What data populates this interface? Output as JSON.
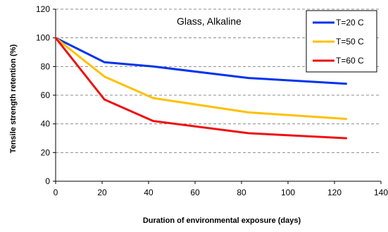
{
  "chart_data": {
    "type": "line",
    "title": "",
    "annotation": "Glass, Alkaline",
    "xlabel": "Duration of environmental exposure (days)",
    "ylabel": "Tensile strength retention (%)",
    "xlim": [
      0,
      140
    ],
    "ylim": [
      0,
      120
    ],
    "xticks": [
      0,
      20,
      40,
      60,
      80,
      100,
      120,
      140
    ],
    "yticks": [
      0,
      20,
      40,
      60,
      80,
      100,
      120
    ],
    "grid": "horizontal dashed",
    "legend_position": "top-right",
    "series": [
      {
        "name": "T=20 C",
        "color": "#0033ee",
        "x": [
          0,
          21,
          42,
          83,
          125
        ],
        "y": [
          100,
          83,
          80,
          72,
          68
        ]
      },
      {
        "name": "T=50 C",
        "color": "#ffc000",
        "x": [
          0,
          21,
          42,
          83,
          125
        ],
        "y": [
          100,
          73,
          58,
          48,
          43.5
        ]
      },
      {
        "name": "T=60 C",
        "color": "#ee1111",
        "x": [
          0,
          21,
          42,
          83,
          125
        ],
        "y": [
          100,
          57,
          42,
          33.5,
          30
        ]
      }
    ]
  }
}
